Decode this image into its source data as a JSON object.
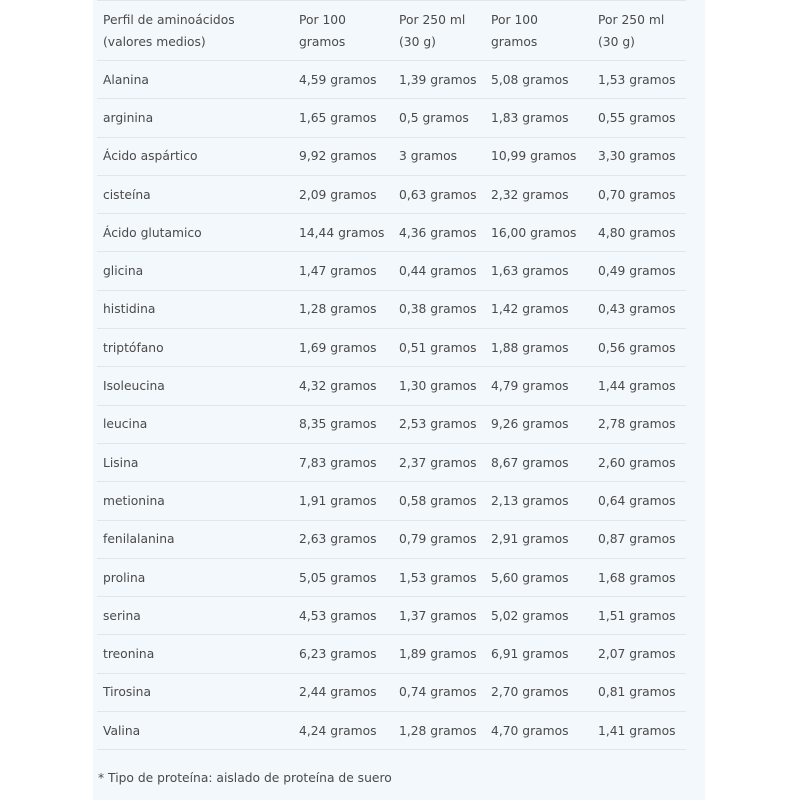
{
  "table": {
    "headers": [
      "Perfil de aminoácidos (valores medios)",
      "Por 100 gramos",
      "Por 250 ml (30 g)",
      "Por 100 gramos",
      "Por 250 ml (30 g)"
    ],
    "rows": [
      [
        "Alanina",
        "4,59 gramos",
        "1,39 gramos",
        "5,08 gramos",
        "1,53 gramos"
      ],
      [
        "arginina",
        "1,65 gramos",
        "0,5 gramos",
        "1,83 gramos",
        "0,55 gramos"
      ],
      [
        "Ácido aspártico",
        "9,92 gramos",
        "3 gramos",
        "10,99 gramos",
        "3,30 gramos"
      ],
      [
        "cisteína",
        "2,09 gramos",
        "0,63 gramos",
        "2,32 gramos",
        "0,70 gramos"
      ],
      [
        "Ácido glutamico",
        "14,44 gramos",
        "4,36 gramos",
        "16,00 gramos",
        "4,80 gramos"
      ],
      [
        "glicina",
        "1,47 gramos",
        "0,44 gramos",
        "1,63 gramos",
        "0,49 gramos"
      ],
      [
        "histidina",
        "1,28 gramos",
        "0,38 gramos",
        "1,42 gramos",
        "0,43 gramos"
      ],
      [
        "triptófano",
        "1,69 gramos",
        "0,51 gramos",
        "1,88 gramos",
        "0,56 gramos"
      ],
      [
        "Isoleucina",
        "4,32 gramos",
        "1,30 gramos",
        "4,79 gramos",
        "1,44 gramos"
      ],
      [
        "leucina",
        "8,35 gramos",
        "2,53 gramos",
        "9,26 gramos",
        "2,78 gramos"
      ],
      [
        "Lisina",
        "7,83 gramos",
        "2,37 gramos",
        "8,67 gramos",
        "2,60 gramos"
      ],
      [
        "metionina",
        "1,91 gramos",
        "0,58 gramos",
        "2,13 gramos",
        "0,64 gramos"
      ],
      [
        "fenilalanina",
        "2,63 gramos",
        "0,79 gramos",
        "2,91 gramos",
        "0,87 gramos"
      ],
      [
        "prolina",
        "5,05 gramos",
        "1,53 gramos",
        "5,60 gramos",
        "1,68 gramos"
      ],
      [
        "serina",
        "4,53 gramos",
        "1,37 gramos",
        "5,02 gramos",
        "1,51 gramos"
      ],
      [
        "treonina",
        "6,23 gramos",
        "1,89 gramos",
        "6,91 gramos",
        "2,07 gramos"
      ],
      [
        "Tirosina",
        "2,44 gramos",
        "0,74 gramos",
        "2,70 gramos",
        "0,81 gramos"
      ],
      [
        "Valina",
        "4,24 gramos",
        "1,28 gramos",
        "4,70 gramos",
        "1,41 gramos"
      ]
    ]
  },
  "footnote": "* Tipo de proteína: aislado de proteína de suero"
}
